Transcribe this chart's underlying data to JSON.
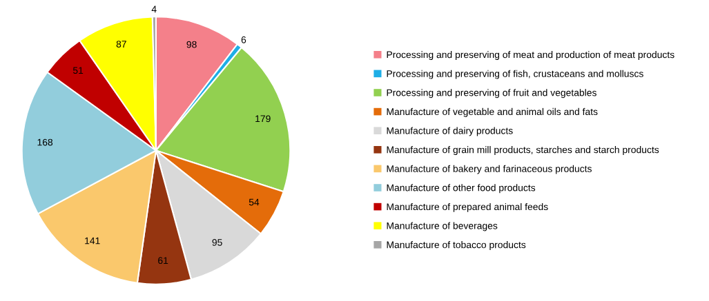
{
  "chart_data": {
    "type": "pie",
    "categories": [
      "Processing and preserving of meat and production of meat products",
      "Processing and preserving of fish, crustaceans and molluscs",
      "Processing and preserving of fruit and vegetables",
      "Manufacture of vegetable and animal oils and fats",
      "Manufacture of dairy products",
      "Manufacture of grain mill products, starches and starch products",
      "Manufacture of bakery and farinaceous products",
      "Manufacture of other food products",
      "Manufacture of prepared animal feeds",
      "Manufacture of beverages",
      "Manufacture of tobacco products"
    ],
    "values": [
      98,
      6,
      179,
      54,
      95,
      61,
      141,
      168,
      51,
      87,
      4
    ],
    "colors": [
      "#f4808a",
      "#1eaee6",
      "#92d050",
      "#e46c0a",
      "#d9d9d9",
      "#953510",
      "#fac86c",
      "#92cddc",
      "#c00000",
      "#ffff00",
      "#a6a6a6"
    ],
    "data_labels": true,
    "legend": "right"
  }
}
